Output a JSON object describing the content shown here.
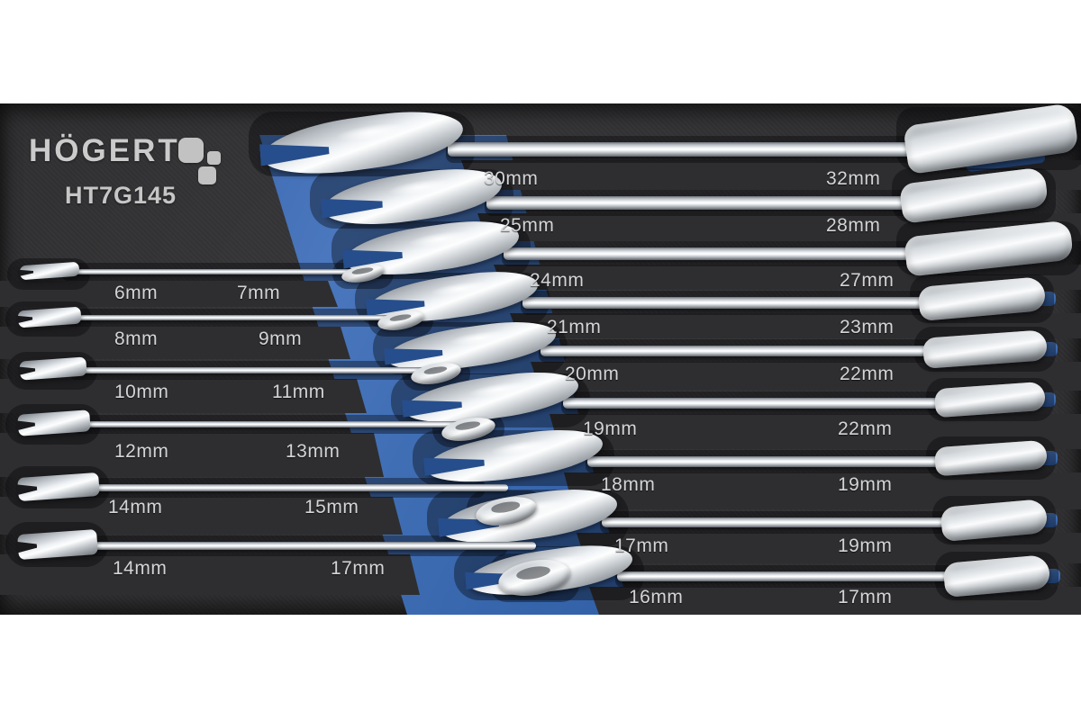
{
  "brand": {
    "logo_text": "HÖGERT",
    "model": "HT7G145"
  },
  "colors": {
    "background": "#ffffff",
    "foam": "#303032",
    "blue": "#3766ad",
    "label_text": "#d3d4d6",
    "chrome_highlight": "#fdfefe"
  },
  "wrenches": {
    "right": [
      {
        "open_label": "30mm",
        "ring_label": "32mm"
      },
      {
        "open_label": "25mm",
        "ring_label": "28mm"
      },
      {
        "open_label": "24mm",
        "ring_label": "27mm"
      },
      {
        "open_label": "21mm",
        "ring_label": "23mm"
      },
      {
        "open_label": "20mm",
        "ring_label": "22mm"
      },
      {
        "open_label": "19mm",
        "ring_label": "22mm"
      },
      {
        "open_label": "18mm",
        "ring_label": "19mm"
      },
      {
        "open_label": "17mm",
        "ring_label": "19mm"
      },
      {
        "open_label": "16mm",
        "ring_label": "17mm"
      }
    ],
    "left": [
      {
        "open_label": "6mm",
        "ring_label": "7mm"
      },
      {
        "open_label": "8mm",
        "ring_label": "9mm"
      },
      {
        "open_label": "10mm",
        "ring_label": "11mm"
      },
      {
        "open_label": "12mm",
        "ring_label": "13mm"
      },
      {
        "open_label": "14mm",
        "ring_label": "15mm"
      },
      {
        "open_label": "14mm",
        "ring_label": "17mm"
      }
    ]
  }
}
